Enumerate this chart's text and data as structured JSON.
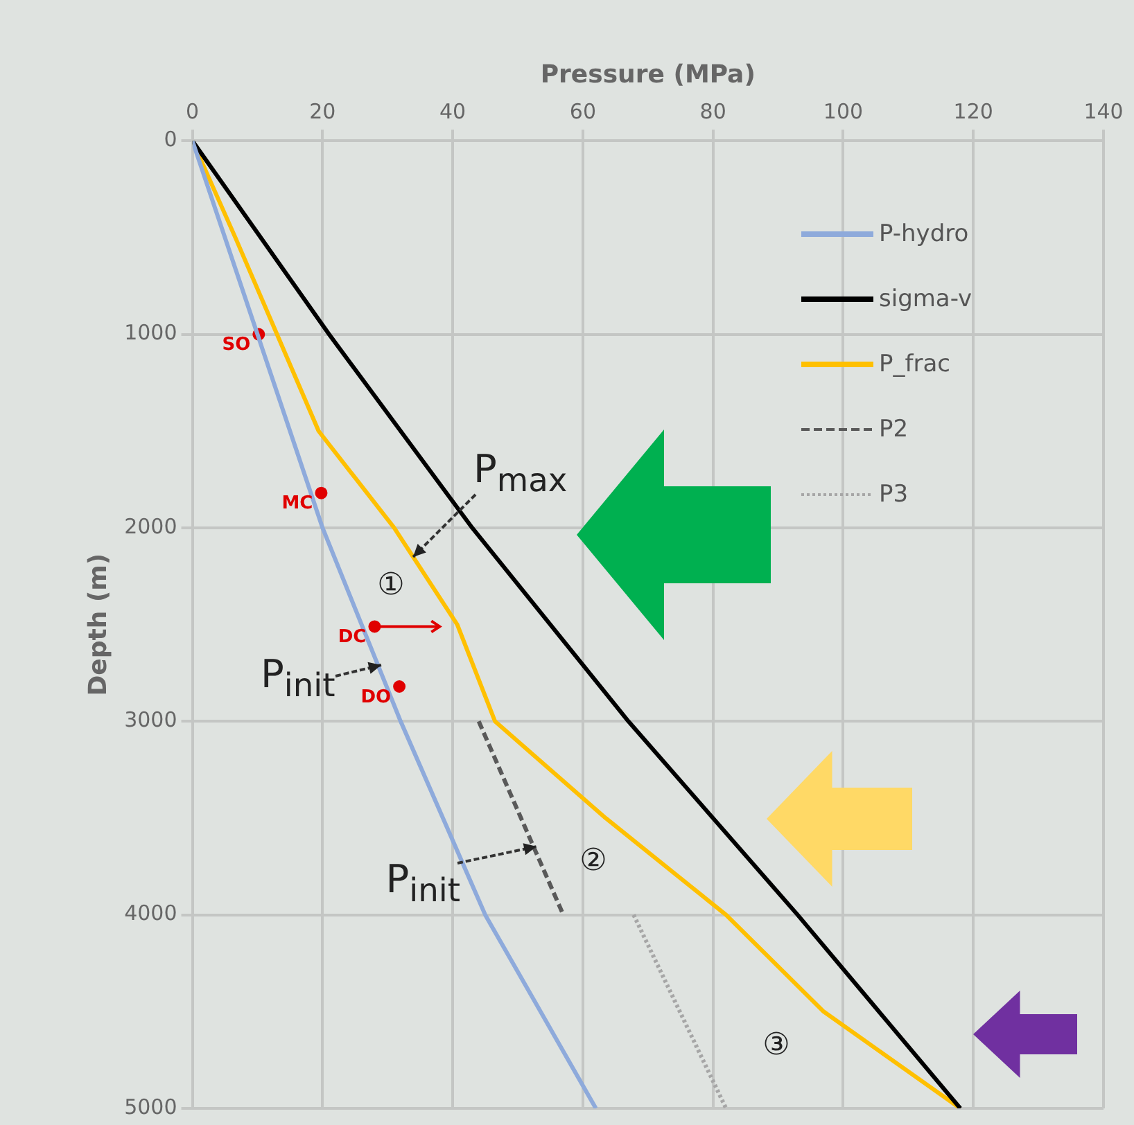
{
  "chart_data": {
    "type": "line",
    "xlabel": "Pressure (MPa)",
    "ylabel": "Depth (m)",
    "xlim": [
      0,
      140
    ],
    "xticks": [
      0,
      20,
      40,
      60,
      80,
      100,
      120,
      140
    ],
    "ylim": [
      5000,
      0
    ],
    "yticks": [
      0,
      1000,
      2000,
      3000,
      4000,
      5000
    ],
    "grid": true,
    "legend": "top right",
    "series": [
      {
        "name": "P-hydro",
        "color": "#8eaadb",
        "x": [
          0,
          10,
          20,
          32,
          45,
          62
        ],
        "values": [
          0,
          1000,
          2000,
          3000,
          4000,
          5000
        ],
        "line_style": "solid"
      },
      {
        "name": "sigma-v",
        "color": "#000000",
        "x": [
          0,
          21,
          43,
          67,
          93,
          118
        ],
        "values": [
          0,
          1000,
          2000,
          3000,
          4000,
          5000
        ],
        "line_style": "solid"
      },
      {
        "name": "P_frac",
        "color": "#ffc000",
        "x": [
          0,
          6.6,
          13,
          19.4,
          31,
          40.7,
          46.5,
          63.5,
          82,
          97,
          118
        ],
        "values": [
          0,
          500,
          1000,
          1500,
          2000,
          2500,
          3000,
          3500,
          4000,
          4500,
          5000
        ],
        "line_style": "solid"
      },
      {
        "name": "P2",
        "color": "#595959",
        "x": [
          44,
          57
        ],
        "values": [
          3000,
          4000
        ],
        "line_style": "dashed"
      },
      {
        "name": "P3",
        "color": "#a6a6a6",
        "x": [
          67.8,
          82
        ],
        "values": [
          4000,
          5000
        ],
        "line_style": "dotted"
      },
      {
        "type": "scatter",
        "color": "#e00000",
        "x": [
          10.2,
          19.8,
          28,
          31.8
        ],
        "values": [
          1000,
          1820,
          2510,
          2820
        ],
        "value_labels": [
          "SO",
          "MC",
          "DC",
          "DO"
        ],
        "xerrors": [
          null,
          null,
          [
            28,
            38
          ],
          null
        ]
      }
    ],
    "annotations": [
      {
        "text": "P$_{max}$",
        "x": 34,
        "y": 2150
      },
      {
        "text": "P$_{init}$",
        "x": 29,
        "y": 2710
      },
      {
        "text": "P$_{init}$",
        "x": 52.9,
        "y": 3650
      },
      "①",
      "②",
      "③"
    ]
  }
}
